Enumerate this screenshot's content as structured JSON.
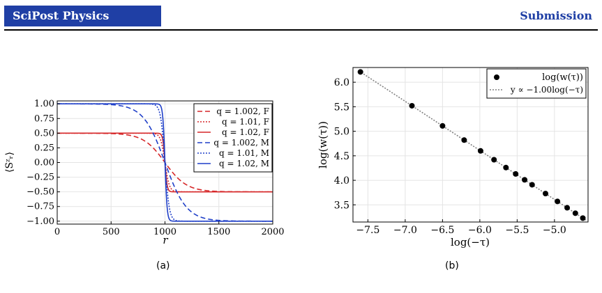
{
  "header": {
    "journal": "SciPost Physics",
    "status": "Submission"
  },
  "figures": {
    "a": {
      "caption": "(a)",
      "xlabel": "r",
      "ylabel": "⟨Sᶻᵣ⟩",
      "x_ticks": [
        "0",
        "500",
        "1000",
        "1500",
        "2000"
      ],
      "y_ticks": [
        "1.00",
        "0.75",
        "0.50",
        "0.25",
        "0.00",
        "−0.25",
        "−0.50",
        "−0.75",
        "−1.00"
      ],
      "legend": [
        "q = 1.002, F",
        "q = 1.01, F",
        "q = 1.02, F",
        "q = 1.002, M",
        "q = 1.01, M",
        "q = 1.02, M"
      ]
    },
    "b": {
      "caption": "(b)",
      "xlabel": "log(−τ)",
      "ylabel": "log(w(τ))",
      "x_ticks": [
        "−7.5",
        "−7.0",
        "−6.5",
        "−6.0",
        "−5.5",
        "−5.0"
      ],
      "y_ticks": [
        "6.0",
        "5.5",
        "5.0",
        "4.5",
        "4.0",
        "3.5"
      ],
      "legend": [
        "log(w(τ))",
        "y ∝ −1.00log(−τ)"
      ]
    }
  },
  "chart_data": [
    {
      "type": "line",
      "xlabel": "r",
      "ylabel": "⟨Sᶻᵣ⟩",
      "xlim": [
        0,
        2000
      ],
      "ylim": [
        -1.05,
        1.05
      ],
      "grid": true,
      "legend_position": "top-right",
      "colors": {
        "F": "#d62728",
        "M": "#1f3fc8"
      },
      "center": 1000,
      "series": [
        {
          "name": "q = 1.002, F",
          "style": "dashed",
          "color": "#d62728",
          "plateau": [
            0.5,
            -0.5
          ],
          "width": 200
        },
        {
          "name": "q = 1.01, F",
          "style": "dotted",
          "color": "#d62728",
          "plateau": [
            0.5,
            -0.5
          ],
          "width": 40
        },
        {
          "name": "q = 1.02, F",
          "style": "solid",
          "color": "#d62728",
          "plateau": [
            0.5,
            -0.5
          ],
          "width": 20
        },
        {
          "name": "q = 1.002, M",
          "style": "dashed",
          "color": "#1f3fc8",
          "plateau": [
            1.0,
            -1.0
          ],
          "width": 200
        },
        {
          "name": "q = 1.01, M",
          "style": "dotted",
          "color": "#1f3fc8",
          "plateau": [
            1.0,
            -1.0
          ],
          "width": 40
        },
        {
          "name": "q = 1.02, M",
          "style": "solid",
          "color": "#1f3fc8",
          "plateau": [
            1.0,
            -1.0
          ],
          "width": 20
        }
      ]
    },
    {
      "type": "scatter",
      "xlabel": "log(−τ)",
      "ylabel": "log(w(τ))",
      "xlim": [
        -7.7,
        -4.55
      ],
      "ylim": [
        3.15,
        6.3
      ],
      "grid": true,
      "legend_position": "top-right",
      "series": [
        {
          "name": "log(w(τ))",
          "x": [
            -7.6,
            -6.91,
            -6.5,
            -6.21,
            -5.99,
            -5.81,
            -5.65,
            -5.52,
            -5.4,
            -5.3,
            -5.12,
            -4.96,
            -4.83,
            -4.72,
            -4.62
          ],
          "y": [
            6.21,
            5.52,
            5.11,
            4.82,
            4.6,
            4.42,
            4.26,
            4.13,
            4.01,
            3.91,
            3.73,
            3.57,
            3.44,
            3.33,
            3.23
          ]
        },
        {
          "name": "y ∝ −1.00log(−τ)",
          "style": "dotted",
          "color": "#808080",
          "slope": -1.0,
          "intercept": -1.39
        }
      ]
    }
  ]
}
